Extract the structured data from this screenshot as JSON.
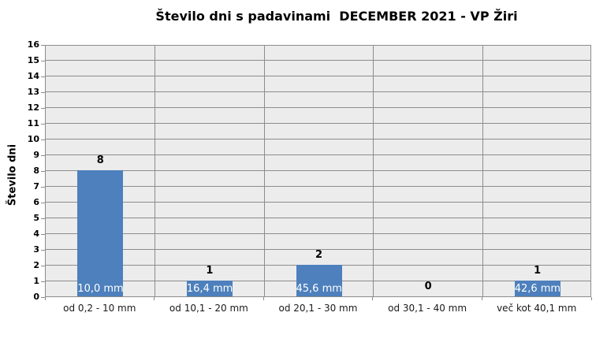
{
  "chart_data": {
    "type": "bar",
    "title": "Število dni s padavinami  DECEMBER 2021 - VP Žiri",
    "ylabel": "Število dni",
    "xlabel": "",
    "categories": [
      "od 0,2 - 10 mm",
      "od 10,1 - 20 mm",
      "od 20,1 - 30 mm",
      "od 30,1 - 40 mm",
      "več kot 40,1 mm"
    ],
    "values": [
      8,
      1,
      2,
      0,
      1
    ],
    "value_labels": [
      "8",
      "1",
      "2",
      "0",
      "1"
    ],
    "bar_inside_labels": [
      "10,0 mm",
      "16,4 mm",
      "45,6 mm",
      "",
      "42,6 mm"
    ],
    "ylim": [
      0,
      16
    ],
    "ytick_step": 1,
    "yticks": [
      0,
      1,
      2,
      3,
      4,
      5,
      6,
      7,
      8,
      9,
      10,
      11,
      12,
      13,
      14,
      15,
      16
    ],
    "grid": true,
    "legend": "none",
    "colors": {
      "bar": "#4D80BC",
      "plot_background": "#ECECEC",
      "gridline": "#8C8C8C",
      "inside_label_text": "#FFFFFF",
      "text": "#000000"
    }
  }
}
